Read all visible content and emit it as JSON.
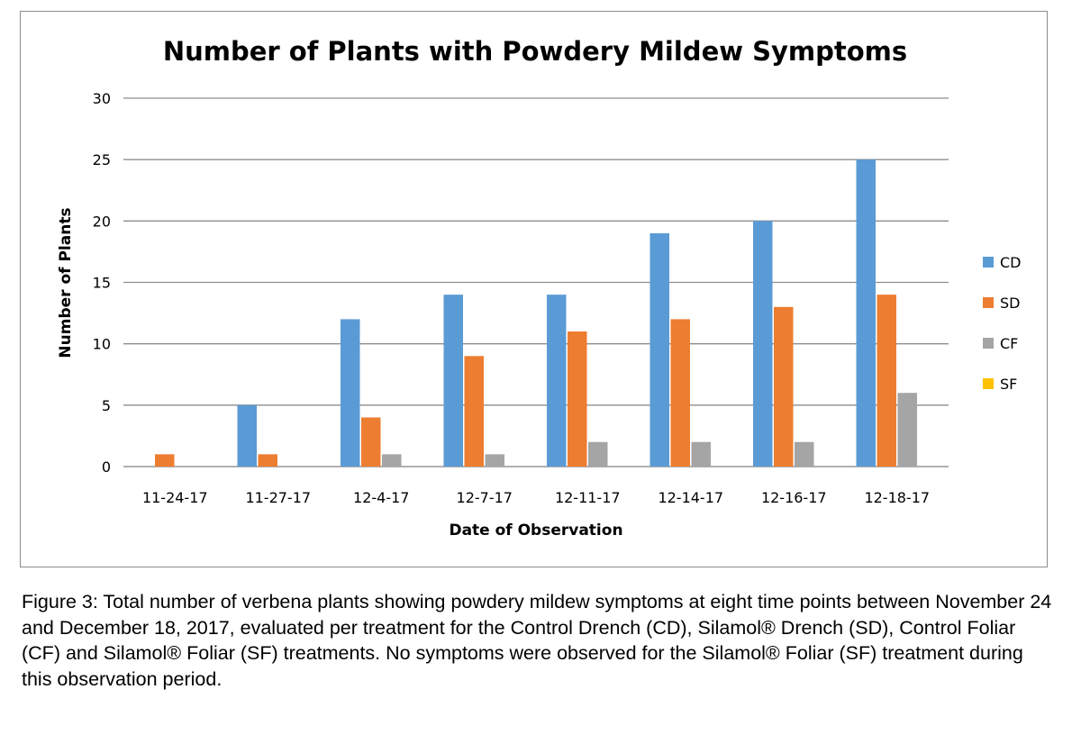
{
  "chart_data": {
    "type": "bar",
    "title": "Number of Plants with Powdery Mildew Symptoms",
    "xlabel": "Date of Observation",
    "ylabel": "Number of Plants",
    "ylim": [
      0,
      30
    ],
    "yticks": [
      0,
      5,
      10,
      15,
      20,
      25,
      30
    ],
    "grid": true,
    "legend_position": "right",
    "categories": [
      "11-24-17",
      "11-27-17",
      "12-4-17",
      "12-7-17",
      "12-11-17",
      "12-14-17",
      "12-16-17",
      "12-18-17"
    ],
    "series": [
      {
        "name": "CD",
        "color": "#5b9bd5",
        "values": [
          0,
          5,
          12,
          14,
          14,
          19,
          20,
          25
        ]
      },
      {
        "name": "SD",
        "color": "#ed7d31",
        "values": [
          1,
          1,
          4,
          9,
          11,
          12,
          13,
          14
        ]
      },
      {
        "name": "CF",
        "color": "#a5a5a5",
        "values": [
          0,
          0,
          1,
          1,
          2,
          2,
          2,
          6
        ]
      },
      {
        "name": "SF",
        "color": "#ffc000",
        "values": [
          0,
          0,
          0,
          0,
          0,
          0,
          0,
          0
        ]
      }
    ]
  },
  "caption": "Figure 3: Total number of verbena plants showing powdery mildew symptoms at eight time points between November 24 and December 18, 2017, evaluated per treatment for the Control Drench (CD), Silamol® Drench (SD), Control Foliar (CF) and Silamol® Foliar (SF) treatments. No symptoms were observed for the Silamol® Foliar (SF) treatment during this observation period."
}
